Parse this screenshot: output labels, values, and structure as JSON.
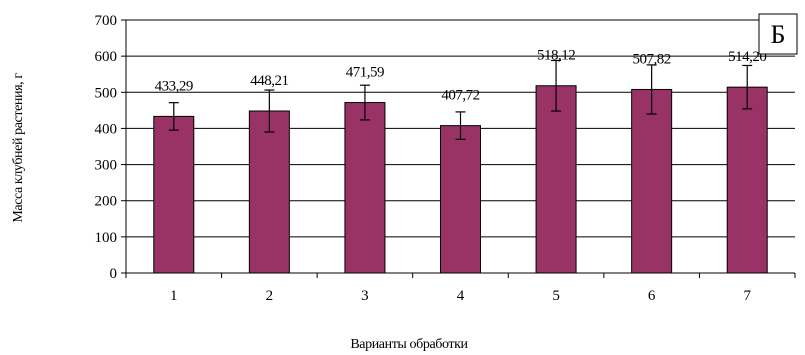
{
  "chart_data": {
    "type": "bar",
    "categories": [
      "1",
      "2",
      "3",
      "4",
      "5",
      "6",
      "7"
    ],
    "values": [
      433.29,
      448.21,
      471.59,
      407.72,
      518.12,
      507.82,
      514.2
    ],
    "value_labels": [
      "433,29",
      "448,21",
      "471,59",
      "407,72",
      "518,12",
      "507,82",
      "514,20"
    ],
    "error": [
      38,
      58,
      48,
      38,
      70,
      68,
      60
    ],
    "ylim": [
      0,
      700
    ],
    "yticks": [
      "0",
      "100",
      "200",
      "300",
      "400",
      "500",
      "600",
      "700"
    ],
    "ytick_values": [
      0,
      100,
      200,
      300,
      400,
      500,
      600,
      700
    ],
    "xlabel": "Варианты обработки",
    "ylabel": "Масса клубней растения, г",
    "panel_label": "Б",
    "grid": true,
    "bar_color": "#993366",
    "bar_edge_color": "#000000"
  }
}
